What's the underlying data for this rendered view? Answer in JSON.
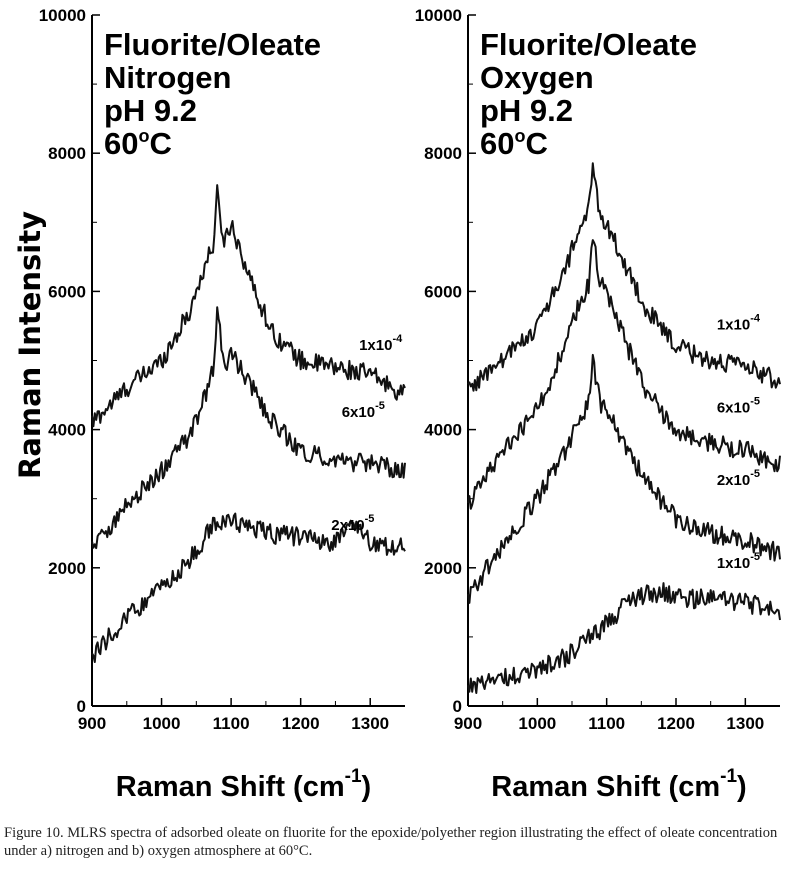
{
  "ylabel": "Raman Intensity",
  "caption": "Figure 10. MLRS spectra of adsorbed oleate on fluorite for the epoxide/polyether region illustrating the effect of oleate concentration under a) nitrogen and b) oxygen atmosphere at 60°C.",
  "chart_data": [
    {
      "type": "line",
      "panel": "a",
      "title_lines": [
        "Fluorite/Oleate",
        "Nitrogen",
        "pH 9.2",
        "60°C"
      ],
      "xlabel": "Raman Shift (cm-1)",
      "ylabel": "Raman Intensity",
      "xlim": [
        900,
        1350
      ],
      "ylim": [
        0,
        10000
      ],
      "xticks": [
        900,
        1000,
        1100,
        1200,
        1300
      ],
      "yticks": [
        0,
        2000,
        4000,
        6000,
        8000,
        10000
      ],
      "grid": false,
      "series": [
        {
          "name": "1x10-4",
          "x": [
            900,
            950,
            1000,
            1040,
            1060,
            1075,
            1080,
            1090,
            1100,
            1130,
            1160,
            1200,
            1250,
            1300,
            1350
          ],
          "y": [
            4100,
            4600,
            5000,
            5700,
            6300,
            6700,
            7400,
            6700,
            7000,
            6100,
            5400,
            5000,
            4900,
            4800,
            4500
          ]
        },
        {
          "name": "6x10-5",
          "x": [
            900,
            950,
            1000,
            1040,
            1060,
            1075,
            1080,
            1090,
            1100,
            1130,
            1160,
            1200,
            1250,
            1300,
            1350
          ],
          "y": [
            2300,
            2900,
            3400,
            3900,
            4400,
            4900,
            5700,
            4900,
            5100,
            4600,
            4100,
            3700,
            3550,
            3500,
            3400
          ]
        },
        {
          "name": "2x10-5",
          "x": [
            900,
            950,
            1000,
            1040,
            1070,
            1080,
            1090,
            1100,
            1150,
            1200,
            1250,
            1275,
            1300,
            1350
          ],
          "y": [
            700,
            1300,
            1700,
            2100,
            2550,
            2700,
            2600,
            2700,
            2500,
            2450,
            2350,
            2700,
            2350,
            2300
          ]
        }
      ]
    },
    {
      "type": "line",
      "panel": "b",
      "title_lines": [
        "Fluorite/Oleate",
        "Oxygen",
        "pH 9.2",
        "60°C"
      ],
      "xlabel": "Raman Shift (cm-1)",
      "ylabel": "",
      "xlim": [
        900,
        1350
      ],
      "ylim": [
        0,
        10000
      ],
      "xticks": [
        900,
        1000,
        1100,
        1200,
        1300
      ],
      "yticks": [
        0,
        2000,
        4000,
        6000,
        8000,
        10000
      ],
      "grid": false,
      "series": [
        {
          "name": "1x10-4",
          "x": [
            900,
            950,
            1000,
            1040,
            1060,
            1075,
            1080,
            1090,
            1100,
            1130,
            1160,
            1200,
            1250,
            1300,
            1350
          ],
          "y": [
            4600,
            5000,
            5500,
            6300,
            6900,
            7200,
            7800,
            7100,
            7000,
            6300,
            5700,
            5200,
            5000,
            4900,
            4700
          ]
        },
        {
          "name": "6x10-5",
          "x": [
            900,
            950,
            1000,
            1040,
            1060,
            1075,
            1080,
            1090,
            1100,
            1130,
            1160,
            1200,
            1250,
            1300,
            1350
          ],
          "y": [
            2900,
            3700,
            4300,
            5200,
            5800,
            6100,
            6800,
            6100,
            6000,
            5200,
            4500,
            4000,
            3800,
            3700,
            3500
          ]
        },
        {
          "name": "2x10-5",
          "x": [
            900,
            950,
            1000,
            1040,
            1060,
            1075,
            1080,
            1090,
            1100,
            1130,
            1160,
            1200,
            1250,
            1300,
            1350
          ],
          "y": [
            1600,
            2300,
            3000,
            3700,
            4100,
            4400,
            5000,
            4400,
            4300,
            3700,
            3200,
            2700,
            2500,
            2400,
            2200
          ]
        },
        {
          "name": "1x10-5",
          "x": [
            900,
            950,
            1000,
            1040,
            1070,
            1080,
            1090,
            1100,
            1130,
            1150,
            1180,
            1200,
            1250,
            1300,
            1350
          ],
          "y": [
            300,
            400,
            550,
            700,
            950,
            1000,
            1100,
            1200,
            1500,
            1600,
            1650,
            1550,
            1550,
            1500,
            1350
          ]
        }
      ]
    }
  ]
}
